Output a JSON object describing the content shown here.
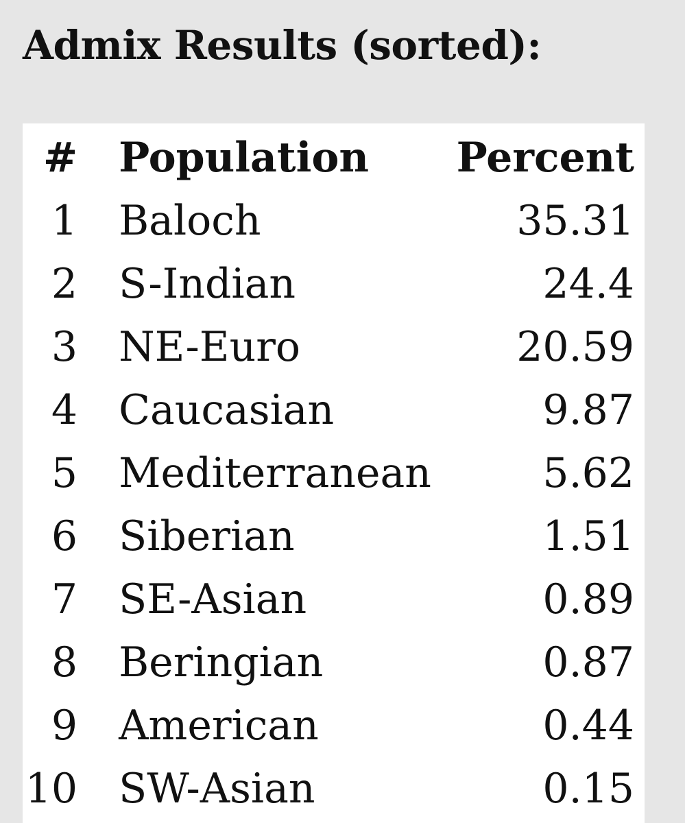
{
  "title": "Admix Results (sorted):",
  "table": {
    "headers": {
      "rank": "#",
      "population": "Population",
      "percent": "Percent"
    },
    "rows": [
      {
        "rank": "1",
        "population": "Baloch",
        "percent": "35.31"
      },
      {
        "rank": "2",
        "population": "S-Indian",
        "percent": "24.4"
      },
      {
        "rank": "3",
        "population": "NE-Euro",
        "percent": "20.59"
      },
      {
        "rank": "4",
        "population": "Caucasian",
        "percent": "9.87"
      },
      {
        "rank": "5",
        "population": "Mediterranean",
        "percent": "5.62"
      },
      {
        "rank": "6",
        "population": "Siberian",
        "percent": "1.51"
      },
      {
        "rank": "7",
        "population": "SE-Asian",
        "percent": "0.89"
      },
      {
        "rank": "8",
        "population": "Beringian",
        "percent": "0.87"
      },
      {
        "rank": "9",
        "population": "American",
        "percent": "0.44"
      },
      {
        "rank": "10",
        "population": "SW-Asian",
        "percent": "0.15"
      }
    ]
  },
  "colors": {
    "page_background": "#e6e6e6",
    "panel_background": "#ffffff",
    "text": "#111111"
  }
}
